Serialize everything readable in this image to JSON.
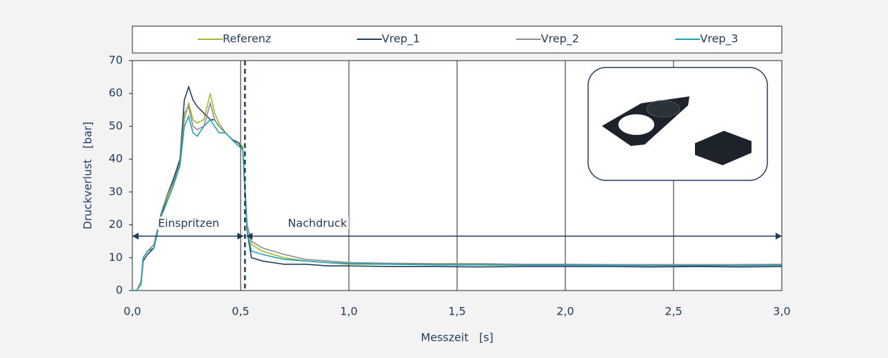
{
  "chart_data": {
    "type": "line",
    "x_label": "Messzeit   [s]",
    "y_label": "Druckverlust   [bar]",
    "annotations": [
      "Einspritzen",
      "Nachdruck"
    ],
    "phase_boundary": 0.52,
    "grid": "x",
    "legend": "top",
    "xlim": [
      0,
      3.0
    ],
    "xticks": [
      {
        "value": 0,
        "label": "0,0"
      },
      {
        "value": 0.5,
        "label": "0,5"
      },
      {
        "value": 1.0,
        "label": "1,0"
      },
      {
        "value": 1.5,
        "label": "1,5"
      },
      {
        "value": 2.0,
        "label": "2,0"
      },
      {
        "value": 2.5,
        "label": "2,5"
      },
      {
        "value": 3.0,
        "label": "3,0"
      }
    ],
    "ylim": [
      0,
      70
    ],
    "yticks": [
      0,
      10,
      20,
      30,
      40,
      50,
      60,
      70
    ],
    "x": [
      0,
      0.02,
      0.04,
      0.05,
      0.07,
      0.1,
      0.13,
      0.16,
      0.19,
      0.22,
      0.24,
      0.26,
      0.28,
      0.3,
      0.33,
      0.36,
      0.38,
      0.4,
      0.43,
      0.46,
      0.49,
      0.51,
      0.53,
      0.55,
      0.6,
      0.7,
      0.8,
      0.9,
      1.0,
      1.2,
      1.4,
      1.6,
      1.8,
      2.0,
      2.2,
      2.4,
      2.6,
      2.8,
      3.0
    ],
    "series": [
      {
        "name": "Referenz",
        "color": "#9bbb2a",
        "values": [
          0,
          0,
          3,
          10,
          12,
          14,
          22,
          28,
          33,
          40,
          52,
          57,
          52,
          51,
          52,
          60,
          54,
          51,
          48,
          46,
          45,
          44,
          20,
          14,
          12,
          10,
          9,
          8.5,
          8,
          8,
          8,
          8,
          7.8,
          7.8,
          7.8,
          7.7,
          7.7,
          7.7,
          7.8
        ]
      },
      {
        "name": "Vrep_1",
        "color": "#1f3b5c",
        "values": [
          0,
          0,
          2,
          9,
          11,
          13,
          22,
          29,
          34,
          40,
          58,
          62,
          58,
          56,
          54,
          52,
          52,
          50,
          48,
          46,
          45,
          43,
          18,
          10,
          9,
          8,
          8,
          7.5,
          7.5,
          7.3,
          7.3,
          7.2,
          7.3,
          7.3,
          7.3,
          7.2,
          7.3,
          7.2,
          7.3
        ]
      },
      {
        "name": "Vrep_2",
        "color": "#8a8a8a",
        "values": [
          0,
          0,
          2,
          10,
          12,
          14,
          23,
          29,
          33,
          39,
          54,
          56,
          50,
          49,
          50,
          57,
          52,
          50,
          48,
          46,
          44,
          43,
          20,
          15,
          13,
          11,
          9.5,
          9,
          8.5,
          8.3,
          8.2,
          8.2,
          8,
          8,
          7.9,
          7.9,
          7.9,
          7.9,
          8
        ]
      },
      {
        "name": "Vrep_3",
        "color": "#1aa0b5",
        "values": [
          0,
          0,
          2,
          10,
          12,
          13,
          22,
          27,
          32,
          38,
          50,
          53,
          48,
          47,
          50,
          52,
          50,
          48,
          48,
          46,
          44,
          43,
          18,
          12,
          11,
          9.5,
          9,
          8.5,
          8.2,
          8,
          7.8,
          7.8,
          7.7,
          7.7,
          7.7,
          7.6,
          7.6,
          7.6,
          7.7
        ]
      }
    ]
  }
}
